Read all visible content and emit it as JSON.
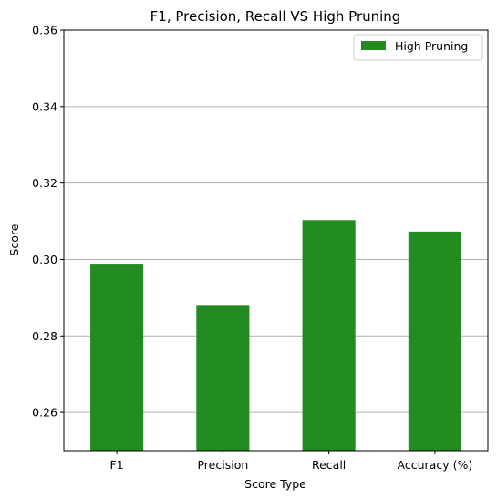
{
  "chart_data": {
    "type": "bar",
    "title": "F1, Precision, Recall VS High Pruning",
    "xlabel": "Score Type",
    "ylabel": "Score",
    "categories": [
      "F1",
      "Precision",
      "Recall",
      "Accuracy (%)"
    ],
    "series": [
      {
        "name": "High Pruning",
        "values": [
          0.2989,
          0.2881,
          0.3103,
          0.3073
        ]
      }
    ],
    "ylim": [
      0.25,
      0.36
    ],
    "yticks": [
      0.26,
      0.28,
      0.3,
      0.32,
      0.34,
      0.36
    ],
    "ytick_labels": [
      "0.26",
      "0.28",
      "0.30",
      "0.32",
      "0.34",
      "0.36"
    ],
    "grid": "y",
    "legend_position": "top-right",
    "bar_color": "#228b22"
  }
}
